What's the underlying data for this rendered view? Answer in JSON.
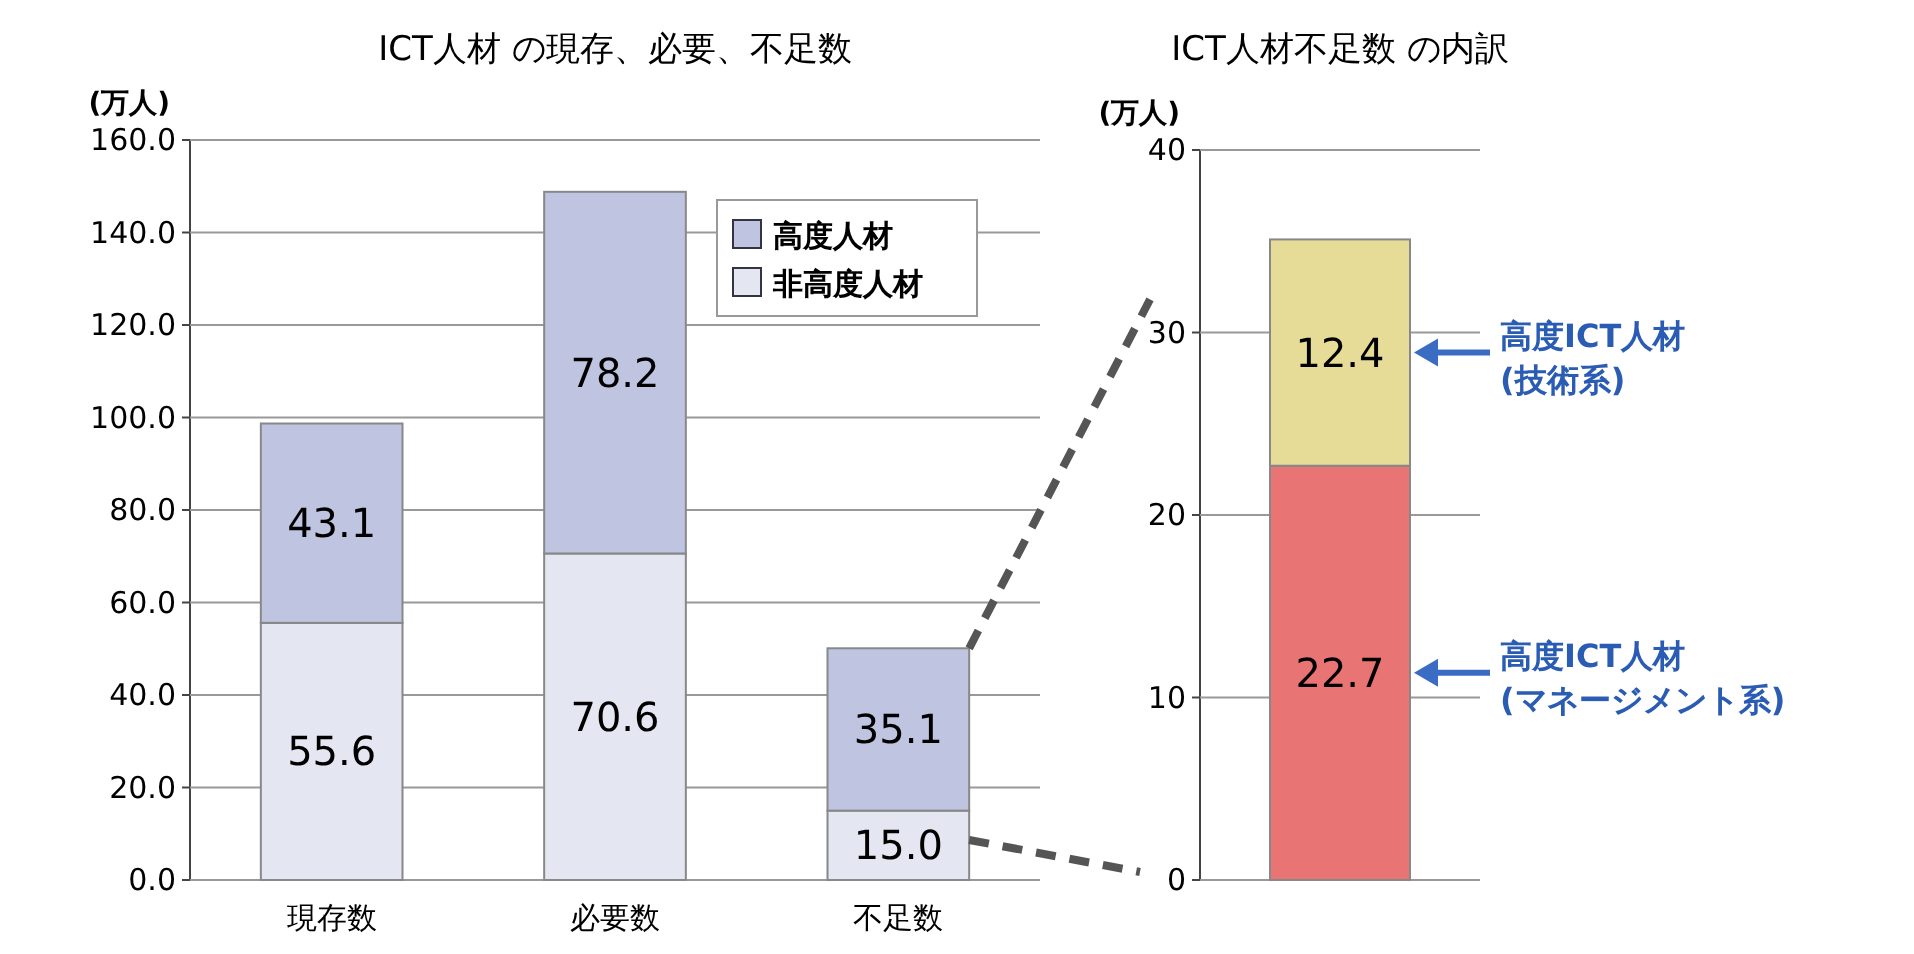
{
  "chart_data": [
    {
      "type": "bar",
      "title": "ICT人材 の現存、必要、不足数",
      "ylabel": "(万人)",
      "categories": [
        "現存数",
        "必要数",
        "不足数"
      ],
      "stacked": true,
      "series": [
        {
          "name": "非高度人材",
          "color": "#e4e6f2",
          "values": [
            55.6,
            70.6,
            15.0
          ],
          "value_labels": [
            "55.6",
            "70.6",
            "15.0"
          ]
        },
        {
          "name": "高度人材",
          "color": "#bfc4e0",
          "values": [
            43.1,
            78.2,
            35.1
          ],
          "value_labels": [
            "43.1",
            "78.2",
            "35.1"
          ]
        }
      ],
      "ylim": [
        0,
        160
      ],
      "yticks": [
        {
          "value": 0,
          "label": "0.0"
        },
        {
          "value": 20,
          "label": "20.0"
        },
        {
          "value": 40,
          "label": "40.0"
        },
        {
          "value": 60,
          "label": "60.0"
        },
        {
          "value": 80,
          "label": "80.0"
        },
        {
          "value": 100,
          "label": "100.0"
        },
        {
          "value": 120,
          "label": "120.0"
        },
        {
          "value": 140,
          "label": "140.0"
        },
        {
          "value": 160,
          "label": "160.0"
        }
      ],
      "grid": "y",
      "legend": "top right"
    },
    {
      "type": "bar",
      "title": "ICT人材不足数 の内訳",
      "ylabel": "(万人)",
      "categories": [
        null
      ],
      "stacked": true,
      "series": [
        {
          "name": "高度ICT人材\n(マネージメント系)",
          "color": "#e87474",
          "values": [
            22.7
          ],
          "value_labels": [
            "22.7"
          ]
        },
        {
          "name": "高度ICT人材\n(技術系)",
          "color": "#e6dc98",
          "values": [
            12.4
          ],
          "value_labels": [
            "12.4"
          ]
        }
      ],
      "ylim": [
        0,
        40
      ],
      "yticks": [
        0,
        10,
        20,
        30,
        40
      ],
      "grid": "y",
      "legend": false
    }
  ]
}
